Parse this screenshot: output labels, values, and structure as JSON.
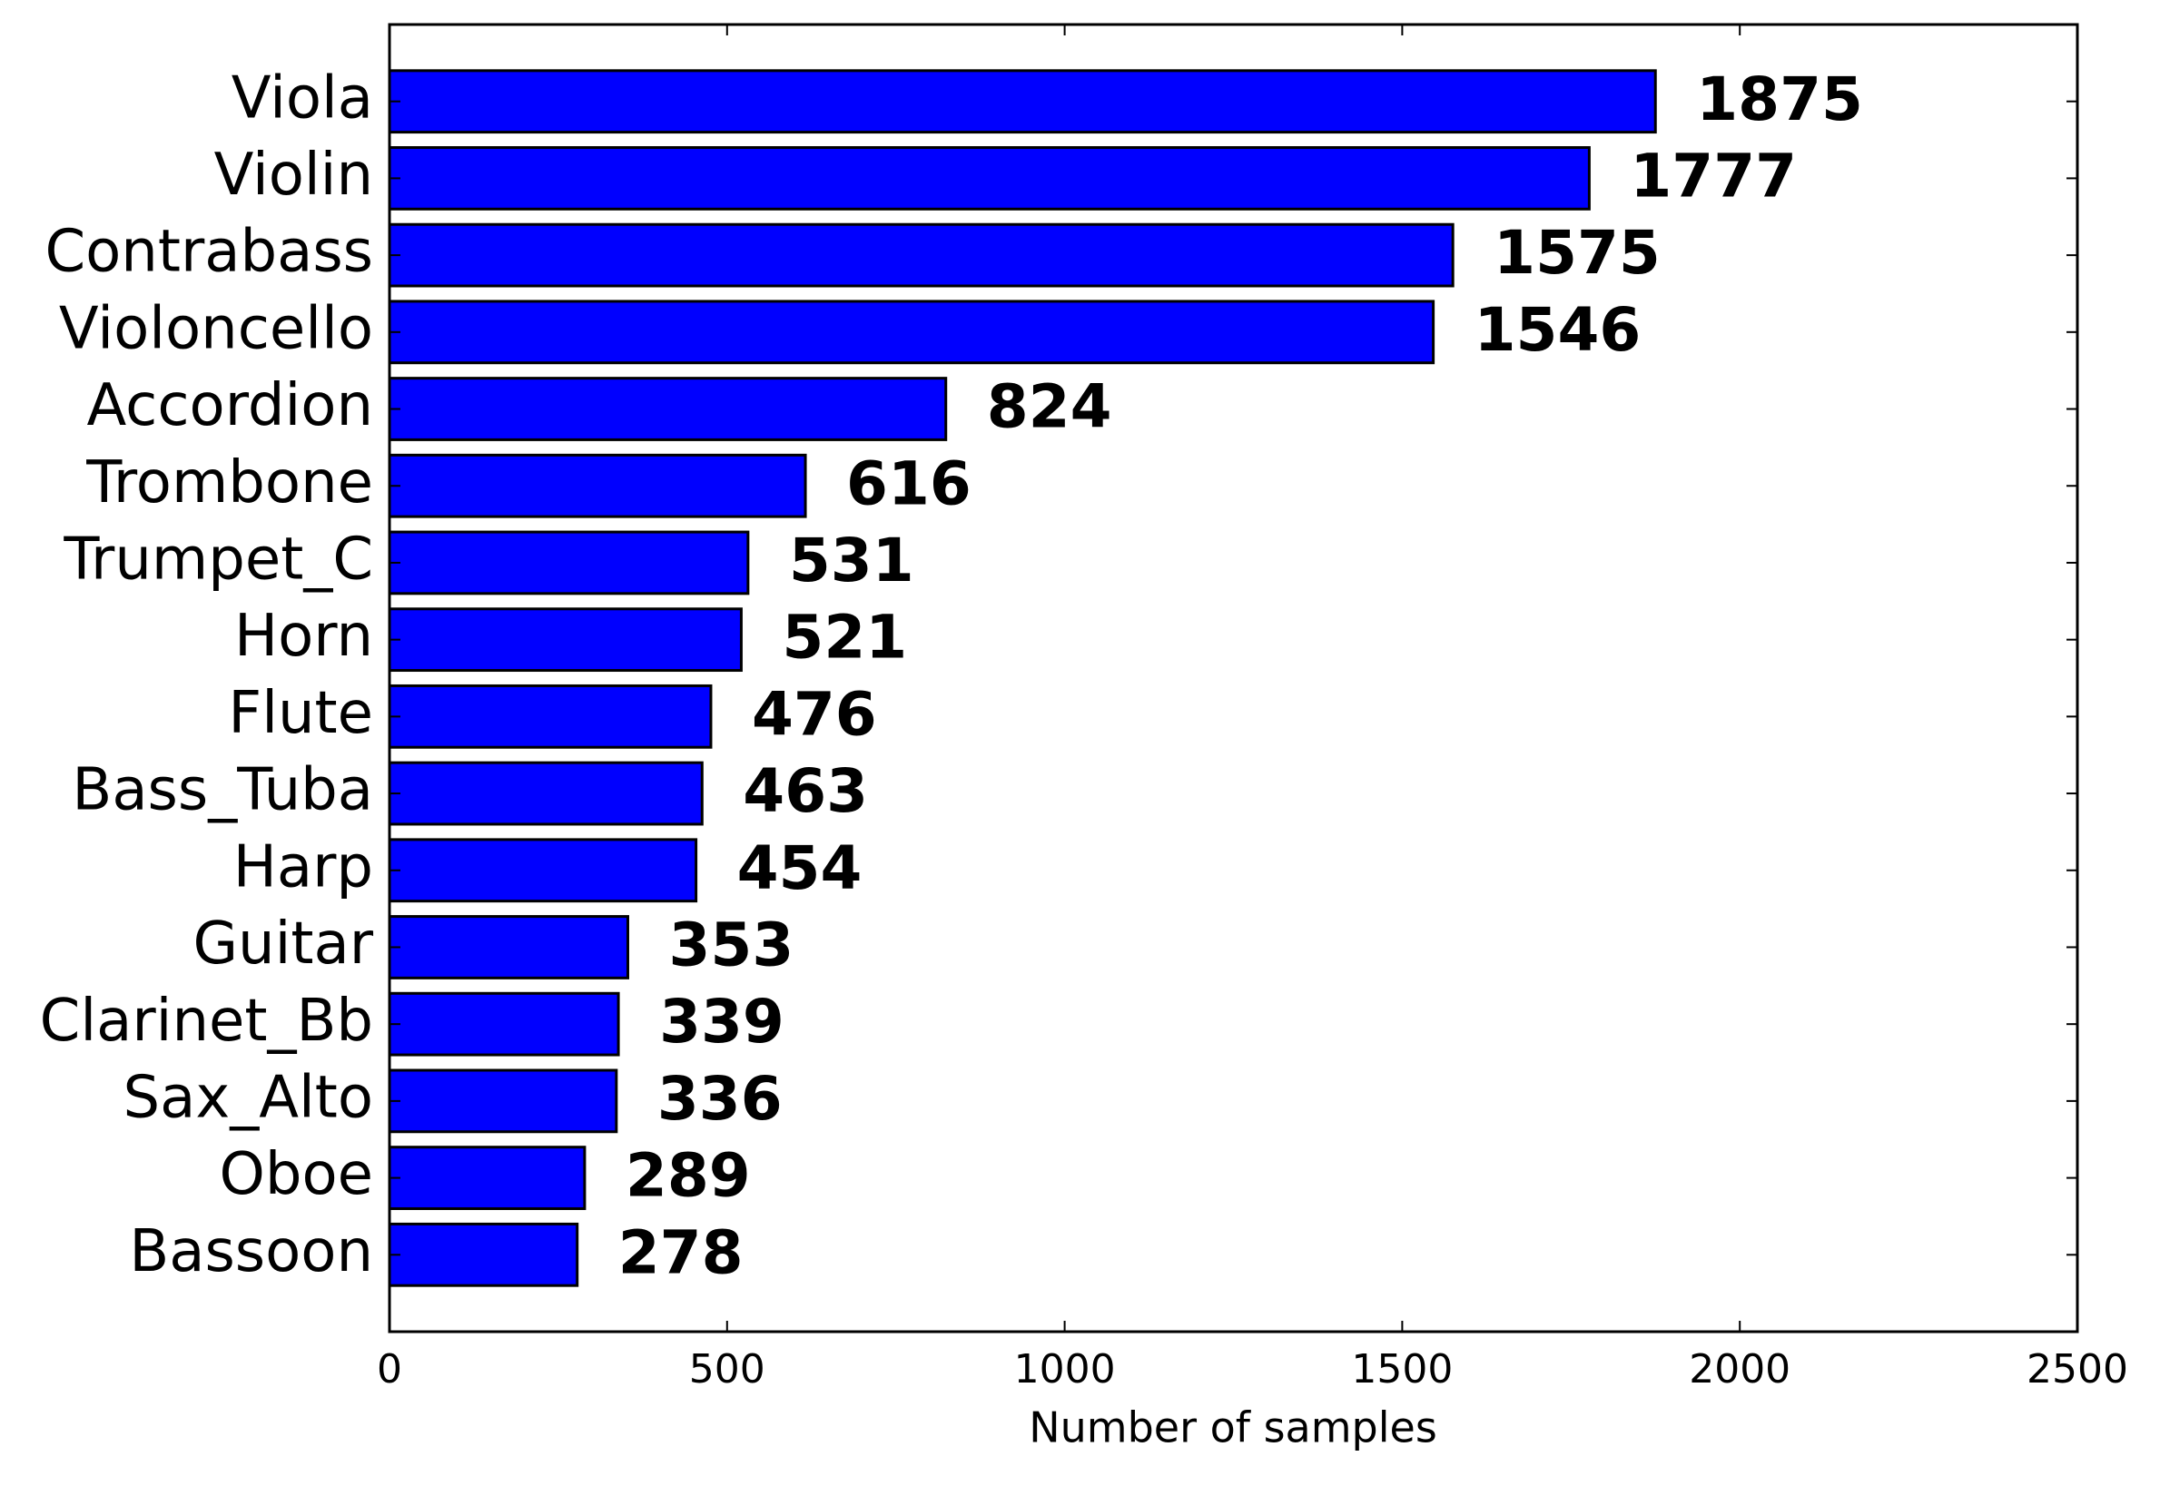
{
  "chart_data": {
    "type": "barh",
    "categories": [
      "Viola",
      "Violin",
      "Contrabass",
      "Violoncello",
      "Accordion",
      "Trombone",
      "Trumpet_C",
      "Horn",
      "Flute",
      "Bass_Tuba",
      "Harp",
      "Guitar",
      "Clarinet_Bb",
      "Sax_Alto",
      "Oboe",
      "Bassoon"
    ],
    "values": [
      1875,
      1777,
      1575,
      1546,
      824,
      616,
      531,
      521,
      476,
      463,
      454,
      353,
      339,
      336,
      289,
      278
    ],
    "color": "#0000ff",
    "xlabel": "Number of samples",
    "xlim": [
      0,
      2500
    ],
    "xticks": [
      0,
      500,
      1000,
      1500,
      2000,
      2500
    ],
    "show_value_labels": true
  }
}
